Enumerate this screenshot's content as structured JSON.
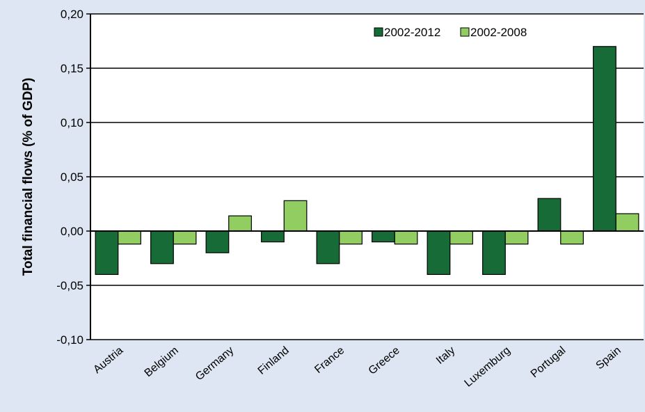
{
  "chart_data": {
    "type": "bar",
    "title": "",
    "xlabel": "",
    "ylabel": "Total financial flows (% of GDP)",
    "ylim": [
      -0.1,
      0.2
    ],
    "yticks": [
      "-0,10",
      "-0,05",
      "0,00",
      "0,05",
      "0,10",
      "0,15",
      "0,20"
    ],
    "ytick_values": [
      -0.1,
      -0.05,
      0.0,
      0.05,
      0.1,
      0.15,
      0.2
    ],
    "grid": true,
    "legend_position": "top-right",
    "categories": [
      "Austria",
      "Belgium",
      "Germany",
      "Finland",
      "France",
      "Greece",
      "Italy",
      "Luxemburg",
      "Portugal",
      "Spain"
    ],
    "series": [
      {
        "name": "2002-2012",
        "color": "#166b37",
        "values": [
          -0.04,
          -0.03,
          -0.02,
          -0.01,
          -0.03,
          -0.01,
          -0.04,
          -0.04,
          0.03,
          0.17
        ]
      },
      {
        "name": "2002-2008",
        "color": "#92cd62",
        "values": [
          -0.012,
          -0.012,
          0.014,
          0.028,
          -0.012,
          -0.012,
          -0.012,
          -0.012,
          -0.012,
          0.016
        ]
      }
    ]
  }
}
